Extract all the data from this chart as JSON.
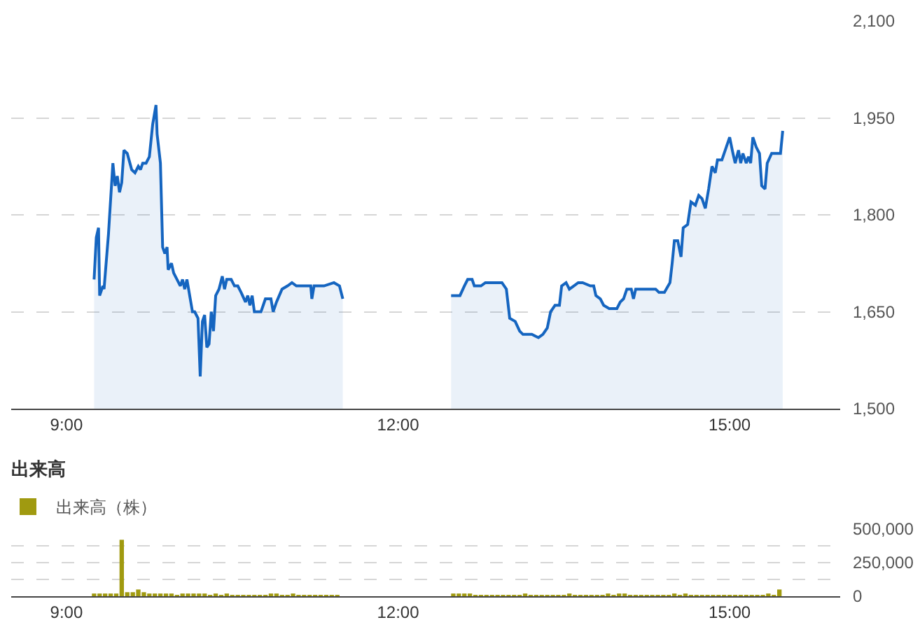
{
  "chart_data": [
    {
      "type": "area",
      "series": [
        {
          "color": "#1565c0",
          "x": [
            9.25,
            9.27,
            9.29,
            9.3,
            9.33,
            9.34,
            9.38,
            9.42,
            9.44,
            9.46,
            9.48,
            9.5,
            9.52,
            9.55,
            9.59,
            9.62,
            9.65,
            9.67,
            9.69,
            9.72,
            9.75,
            9.78,
            9.81,
            9.82,
            9.85,
            9.87,
            9.89,
            9.91,
            9.92,
            9.95,
            9.97,
            10.0,
            10.03,
            10.05,
            10.07,
            10.09,
            10.12,
            10.14,
            10.16,
            10.19,
            10.21,
            10.23,
            10.25,
            10.27,
            10.29,
            10.31,
            10.33,
            10.35,
            10.38,
            10.41,
            10.43,
            10.45,
            10.49,
            10.52,
            10.55,
            10.58,
            10.62,
            10.64,
            10.66,
            10.68,
            10.7,
            10.76,
            10.8,
            10.85,
            10.87,
            10.9,
            10.95,
            11.0,
            11.04,
            11.08,
            11.16,
            11.21,
            11.22,
            11.24,
            11.33,
            11.42,
            11.47,
            11.5
          ],
          "values": [
            1700,
            1765,
            1780,
            1675,
            1690,
            1685,
            1770,
            1880,
            1845,
            1860,
            1835,
            1850,
            1900,
            1895,
            1870,
            1865,
            1875,
            1870,
            1880,
            1880,
            1890,
            1940,
            1970,
            1925,
            1880,
            1750,
            1740,
            1750,
            1715,
            1725,
            1710,
            1700,
            1690,
            1700,
            1685,
            1700,
            1670,
            1650,
            1650,
            1640,
            1550,
            1635,
            1645,
            1595,
            1600,
            1650,
            1620,
            1675,
            1685,
            1705,
            1685,
            1700,
            1700,
            1690,
            1690,
            1680,
            1665,
            1675,
            1660,
            1675,
            1650,
            1650,
            1670,
            1670,
            1650,
            1665,
            1685,
            1690,
            1695,
            1690,
            1690,
            1690,
            1670,
            1690,
            1690,
            1695,
            1690,
            1670
          ]
        },
        {
          "color": "#1565c0",
          "x": [
            12.48,
            12.52,
            12.56,
            12.6,
            12.63,
            12.67,
            12.69,
            12.75,
            12.79,
            12.87,
            12.94,
            12.98,
            13.01,
            13.06,
            13.1,
            13.13,
            13.17,
            13.21,
            13.27,
            13.31,
            13.35,
            13.38,
            13.42,
            13.46,
            13.48,
            13.52,
            13.55,
            13.59,
            13.63,
            13.67,
            13.74,
            13.77,
            13.79,
            13.83,
            13.86,
            13.91,
            13.95,
            13.98,
            14.01,
            14.04,
            14.07,
            14.11,
            14.13,
            14.15,
            14.24,
            14.33,
            14.36,
            14.41,
            14.46,
            14.48,
            14.5,
            14.53,
            14.56,
            14.58,
            14.62,
            14.65,
            14.69,
            14.72,
            14.75,
            14.78,
            14.81,
            14.84,
            14.87,
            14.89,
            14.93,
            14.96,
            15.0,
            15.03,
            15.05,
            15.08,
            15.1,
            15.12,
            15.15,
            15.17,
            15.19,
            15.21,
            15.24,
            15.27,
            15.29,
            15.32,
            15.34,
            15.38,
            15.46,
            15.48
          ],
          "values": [
            1675,
            1675,
            1675,
            1690,
            1700,
            1700,
            1690,
            1690,
            1695,
            1695,
            1695,
            1685,
            1640,
            1635,
            1620,
            1615,
            1615,
            1615,
            1610,
            1615,
            1625,
            1650,
            1660,
            1660,
            1690,
            1695,
            1685,
            1690,
            1695,
            1695,
            1690,
            1690,
            1675,
            1670,
            1660,
            1655,
            1655,
            1655,
            1665,
            1670,
            1685,
            1685,
            1670,
            1685,
            1685,
            1685,
            1680,
            1680,
            1695,
            1725,
            1760,
            1760,
            1735,
            1780,
            1785,
            1820,
            1815,
            1830,
            1825,
            1810,
            1840,
            1875,
            1865,
            1885,
            1885,
            1900,
            1920,
            1895,
            1880,
            1900,
            1880,
            1895,
            1880,
            1890,
            1880,
            1920,
            1905,
            1895,
            1845,
            1840,
            1880,
            1895,
            1895,
            1930
          ]
        }
      ],
      "xlim": [
        8.5,
        16
      ],
      "xticks": [
        {
          "value": 9,
          "label": "9:00"
        },
        {
          "value": 12,
          "label": "12:00"
        },
        {
          "value": 15,
          "label": "15:00"
        }
      ],
      "ylim": [
        1500,
        2100
      ],
      "yticks": [
        {
          "value": 1500,
          "label": "1,500"
        },
        {
          "value": 1650,
          "label": "1,650"
        },
        {
          "value": 1800,
          "label": "1,800"
        },
        {
          "value": 1950,
          "label": "1,950"
        },
        {
          "value": 2100,
          "label": "2,100"
        }
      ],
      "grid": "y"
    },
    {
      "type": "bar",
      "title": "出来高",
      "x": [
        9.25,
        9.3,
        9.35,
        9.4,
        9.45,
        9.5,
        9.55,
        9.6,
        9.65,
        9.7,
        9.75,
        9.8,
        9.85,
        9.9,
        9.95,
        10,
        10.05,
        10.1,
        10.15,
        10.2,
        10.25,
        10.3,
        10.35,
        10.4,
        10.45,
        10.5,
        10.55,
        10.6,
        10.65,
        10.7,
        10.75,
        10.8,
        10.85,
        10.9,
        10.95,
        11,
        11.05,
        11.1,
        11.15,
        11.2,
        11.25,
        11.3,
        11.35,
        11.4,
        11.45,
        12.5,
        12.55,
        12.6,
        12.65,
        12.7,
        12.75,
        12.8,
        12.85,
        12.9,
        12.95,
        13,
        13.05,
        13.1,
        13.15,
        13.2,
        13.25,
        13.3,
        13.35,
        13.4,
        13.45,
        13.5,
        13.55,
        13.6,
        13.65,
        13.7,
        13.75,
        13.8,
        13.85,
        13.9,
        13.95,
        14,
        14.05,
        14.1,
        14.15,
        14.2,
        14.25,
        14.3,
        14.35,
        14.4,
        14.45,
        14.5,
        14.55,
        14.6,
        14.65,
        14.7,
        14.75,
        14.8,
        14.85,
        14.9,
        14.95,
        15,
        15.05,
        15.1,
        15.15,
        15.2,
        15.25,
        15.3,
        15.35,
        15.4,
        15.45
      ],
      "series": [
        {
          "name": "出来高（株）",
          "color": "#a09a10",
          "values": [
            20000,
            20000,
            20000,
            20000,
            20000,
            420000,
            30000,
            30000,
            50000,
            30000,
            20000,
            20000,
            20000,
            20000,
            20000,
            10000,
            20000,
            20000,
            20000,
            20000,
            20000,
            10000,
            20000,
            10000,
            20000,
            10000,
            10000,
            10000,
            10000,
            10000,
            10000,
            10000,
            20000,
            20000,
            10000,
            10000,
            20000,
            10000,
            10000,
            10000,
            10000,
            10000,
            10000,
            10000,
            10000,
            20000,
            20000,
            20000,
            20000,
            10000,
            10000,
            10000,
            10000,
            10000,
            10000,
            10000,
            10000,
            10000,
            20000,
            10000,
            10000,
            10000,
            10000,
            10000,
            10000,
            10000,
            20000,
            10000,
            10000,
            10000,
            10000,
            10000,
            10000,
            20000,
            10000,
            20000,
            20000,
            10000,
            10000,
            10000,
            10000,
            10000,
            10000,
            10000,
            10000,
            20000,
            10000,
            20000,
            10000,
            10000,
            10000,
            10000,
            10000,
            10000,
            10000,
            10000,
            10000,
            10000,
            10000,
            10000,
            10000,
            10000,
            20000,
            10000,
            50000
          ]
        }
      ],
      "xlim": [
        8.5,
        16
      ],
      "xticks": [
        {
          "value": 9,
          "label": "9:00"
        },
        {
          "value": 12,
          "label": "12:00"
        },
        {
          "value": 15,
          "label": "15:00"
        }
      ],
      "ylim": [
        0,
        500000
      ],
      "yticks": [
        0,
        {
          "value": 125000,
          "label": null
        },
        {
          "value": 250000,
          "label": "250,000"
        },
        {
          "value": 375000,
          "label": null
        },
        {
          "value": 500000,
          "label": "500,000"
        }
      ],
      "grid": "y",
      "legend": "top left"
    }
  ]
}
